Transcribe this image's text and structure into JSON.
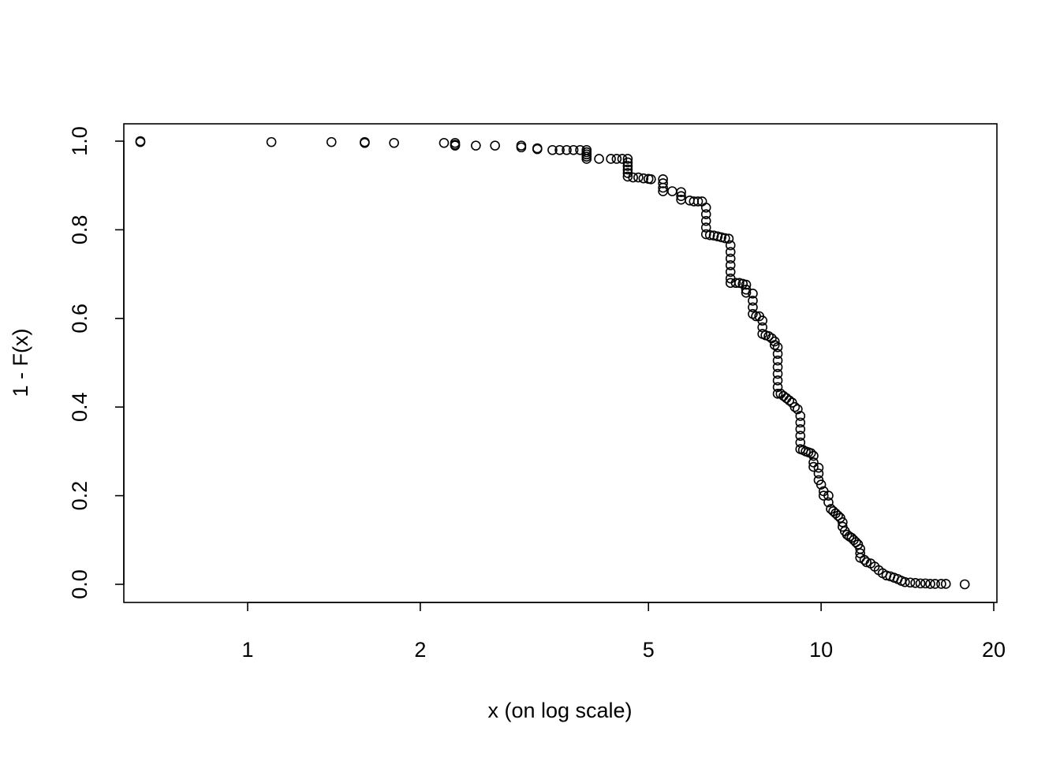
{
  "chart_data": {
    "type": "scatter",
    "title": "",
    "xlabel": "x (on log scale)",
    "ylabel": "1 - F(x)",
    "x_scale": "log",
    "xlim": [
      0.6,
      20
    ],
    "ylim": [
      0.0,
      1.0
    ],
    "x_ticks": [
      1,
      2,
      5,
      10,
      20
    ],
    "x_tick_labels": [
      "1",
      "2",
      "5",
      "10",
      "20"
    ],
    "y_ticks": [
      0.0,
      0.2,
      0.4,
      0.6,
      0.8,
      1.0
    ],
    "y_tick_labels": [
      "0.0",
      "0.2",
      "0.4",
      "0.6",
      "0.8",
      "1.0"
    ],
    "grid": false,
    "legend": "none",
    "marker": "open-circle",
    "color": "#000000",
    "series": [
      {
        "points": [
          [
            0.65,
            1.0
          ],
          [
            0.65,
            0.998
          ],
          [
            1.1,
            0.998
          ],
          [
            1.4,
            0.998
          ],
          [
            1.6,
            0.998
          ],
          [
            1.6,
            0.996
          ],
          [
            1.8,
            0.996
          ],
          [
            2.2,
            0.996
          ],
          [
            2.3,
            0.996
          ],
          [
            2.3,
            0.992
          ],
          [
            2.3,
            0.99
          ],
          [
            2.5,
            0.99
          ],
          [
            2.7,
            0.99
          ],
          [
            3.0,
            0.99
          ],
          [
            3.0,
            0.986
          ],
          [
            3.2,
            0.984
          ],
          [
            3.2,
            0.982
          ],
          [
            3.4,
            0.98
          ],
          [
            3.5,
            0.98
          ],
          [
            3.6,
            0.98
          ],
          [
            3.7,
            0.98
          ],
          [
            3.8,
            0.98
          ],
          [
            3.9,
            0.98
          ],
          [
            3.9,
            0.975
          ],
          [
            3.9,
            0.97
          ],
          [
            3.9,
            0.965
          ],
          [
            3.9,
            0.96
          ],
          [
            4.1,
            0.96
          ],
          [
            4.3,
            0.96
          ],
          [
            4.4,
            0.96
          ],
          [
            4.5,
            0.96
          ],
          [
            4.6,
            0.96
          ],
          [
            4.6,
            0.952
          ],
          [
            4.6,
            0.944
          ],
          [
            4.6,
            0.936
          ],
          [
            4.6,
            0.928
          ],
          [
            4.6,
            0.92
          ],
          [
            4.7,
            0.918
          ],
          [
            4.8,
            0.918
          ],
          [
            4.9,
            0.916
          ],
          [
            5.0,
            0.915
          ],
          [
            5.05,
            0.914
          ],
          [
            5.3,
            0.914
          ],
          [
            5.3,
            0.905
          ],
          [
            5.3,
            0.895
          ],
          [
            5.3,
            0.887
          ],
          [
            5.5,
            0.887
          ],
          [
            5.7,
            0.885
          ],
          [
            5.7,
            0.876
          ],
          [
            5.7,
            0.868
          ],
          [
            5.9,
            0.866
          ],
          [
            6.0,
            0.864
          ],
          [
            6.1,
            0.864
          ],
          [
            6.2,
            0.864
          ],
          [
            6.3,
            0.85
          ],
          [
            6.3,
            0.835
          ],
          [
            6.3,
            0.82
          ],
          [
            6.3,
            0.805
          ],
          [
            6.3,
            0.79
          ],
          [
            6.4,
            0.788
          ],
          [
            6.5,
            0.787
          ],
          [
            6.6,
            0.785
          ],
          [
            6.7,
            0.783
          ],
          [
            6.8,
            0.781
          ],
          [
            6.9,
            0.78
          ],
          [
            6.95,
            0.765
          ],
          [
            6.95,
            0.75
          ],
          [
            6.95,
            0.735
          ],
          [
            6.95,
            0.72
          ],
          [
            6.95,
            0.705
          ],
          [
            6.95,
            0.69
          ],
          [
            6.95,
            0.68
          ],
          [
            7.1,
            0.68
          ],
          [
            7.2,
            0.68
          ],
          [
            7.3,
            0.678
          ],
          [
            7.4,
            0.676
          ],
          [
            7.4,
            0.665
          ],
          [
            7.4,
            0.658
          ],
          [
            7.6,
            0.656
          ],
          [
            7.6,
            0.64
          ],
          [
            7.6,
            0.625
          ],
          [
            7.6,
            0.61
          ],
          [
            7.7,
            0.605
          ],
          [
            7.8,
            0.605
          ],
          [
            7.9,
            0.595
          ],
          [
            7.9,
            0.58
          ],
          [
            7.9,
            0.565
          ],
          [
            8.0,
            0.562
          ],
          [
            8.1,
            0.56
          ],
          [
            8.2,
            0.555
          ],
          [
            8.3,
            0.548
          ],
          [
            8.3,
            0.54
          ],
          [
            8.4,
            0.535
          ],
          [
            8.4,
            0.52
          ],
          [
            8.4,
            0.505
          ],
          [
            8.4,
            0.49
          ],
          [
            8.4,
            0.475
          ],
          [
            8.4,
            0.46
          ],
          [
            8.4,
            0.445
          ],
          [
            8.4,
            0.43
          ],
          [
            8.5,
            0.43
          ],
          [
            8.6,
            0.425
          ],
          [
            8.7,
            0.42
          ],
          [
            8.8,
            0.415
          ],
          [
            8.9,
            0.41
          ],
          [
            9.0,
            0.4
          ],
          [
            9.1,
            0.395
          ],
          [
            9.2,
            0.38
          ],
          [
            9.2,
            0.365
          ],
          [
            9.2,
            0.35
          ],
          [
            9.2,
            0.335
          ],
          [
            9.2,
            0.32
          ],
          [
            9.2,
            0.305
          ],
          [
            9.3,
            0.303
          ],
          [
            9.4,
            0.3
          ],
          [
            9.5,
            0.298
          ],
          [
            9.6,
            0.296
          ],
          [
            9.7,
            0.29
          ],
          [
            9.7,
            0.275
          ],
          [
            9.7,
            0.265
          ],
          [
            9.9,
            0.263
          ],
          [
            9.9,
            0.25
          ],
          [
            9.9,
            0.235
          ],
          [
            10.0,
            0.225
          ],
          [
            10.1,
            0.21
          ],
          [
            10.1,
            0.2
          ],
          [
            10.3,
            0.2
          ],
          [
            10.3,
            0.185
          ],
          [
            10.4,
            0.17
          ],
          [
            10.5,
            0.165
          ],
          [
            10.6,
            0.16
          ],
          [
            10.7,
            0.155
          ],
          [
            10.8,
            0.15
          ],
          [
            10.9,
            0.14
          ],
          [
            10.9,
            0.13
          ],
          [
            11.0,
            0.12
          ],
          [
            11.1,
            0.112
          ],
          [
            11.2,
            0.108
          ],
          [
            11.3,
            0.105
          ],
          [
            11.4,
            0.1
          ],
          [
            11.5,
            0.095
          ],
          [
            11.6,
            0.09
          ],
          [
            11.7,
            0.08
          ],
          [
            11.7,
            0.07
          ],
          [
            11.7,
            0.06
          ],
          [
            11.9,
            0.055
          ],
          [
            12.0,
            0.05
          ],
          [
            12.2,
            0.047
          ],
          [
            12.4,
            0.04
          ],
          [
            12.6,
            0.032
          ],
          [
            12.8,
            0.025
          ],
          [
            13.0,
            0.02
          ],
          [
            13.2,
            0.018
          ],
          [
            13.4,
            0.015
          ],
          [
            13.6,
            0.012
          ],
          [
            13.8,
            0.008
          ],
          [
            14.0,
            0.005
          ],
          [
            14.3,
            0.004
          ],
          [
            14.6,
            0.003
          ],
          [
            14.9,
            0.002
          ],
          [
            15.2,
            0.002
          ],
          [
            15.5,
            0.001
          ],
          [
            15.8,
            0.001
          ],
          [
            16.2,
            0.001
          ],
          [
            16.5,
            0.001
          ],
          [
            17.8,
            0.0
          ]
        ]
      }
    ]
  }
}
